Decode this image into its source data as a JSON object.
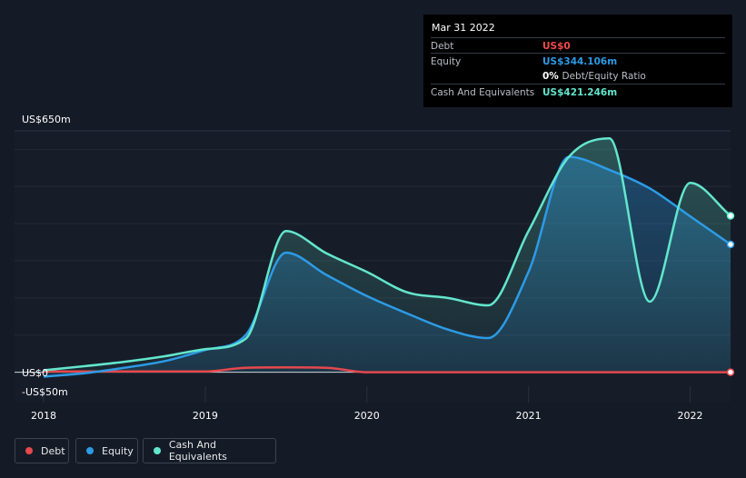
{
  "chart_data": {
    "type": "area",
    "y_unit": "US$m",
    "ylim": [
      -50,
      650
    ],
    "xlim": [
      2018,
      2022.25
    ],
    "y_labels": {
      "top": "US$650m",
      "zero": "US$0",
      "bottom": "-US$50m"
    },
    "x_ticks": [
      {
        "value": 2018,
        "label": "2018"
      },
      {
        "value": 2019,
        "label": "2019"
      },
      {
        "value": 2020,
        "label": "2020"
      },
      {
        "value": 2021,
        "label": "2021"
      },
      {
        "value": 2022,
        "label": "2022"
      }
    ],
    "series": [
      {
        "name": "Cash And Equivalents",
        "color": "#63e6cd",
        "points": [
          [
            2018.0,
            5
          ],
          [
            2018.25,
            16
          ],
          [
            2018.5,
            28
          ],
          [
            2018.75,
            43
          ],
          [
            2019.0,
            62
          ],
          [
            2019.25,
            90
          ],
          [
            2019.5,
            380
          ],
          [
            2019.75,
            320
          ],
          [
            2020.0,
            270
          ],
          [
            2020.25,
            215
          ],
          [
            2020.5,
            200
          ],
          [
            2020.75,
            180
          ],
          [
            2021.0,
            380
          ],
          [
            2021.25,
            580
          ],
          [
            2021.5,
            630
          ],
          [
            2021.75,
            190
          ],
          [
            2022.0,
            510
          ],
          [
            2022.25,
            421.246
          ]
        ]
      },
      {
        "name": "Equity",
        "color": "#2d9be6",
        "points": [
          [
            2018.0,
            -12
          ],
          [
            2018.25,
            -3
          ],
          [
            2018.5,
            12
          ],
          [
            2018.75,
            30
          ],
          [
            2019.0,
            60
          ],
          [
            2019.25,
            100
          ],
          [
            2019.5,
            322
          ],
          [
            2019.75,
            262
          ],
          [
            2020.0,
            205
          ],
          [
            2020.25,
            158
          ],
          [
            2020.5,
            115
          ],
          [
            2020.75,
            92
          ],
          [
            2021.0,
            270
          ],
          [
            2021.25,
            580
          ],
          [
            2021.5,
            545
          ],
          [
            2021.75,
            495
          ],
          [
            2022.0,
            420
          ],
          [
            2022.25,
            344.106
          ]
        ]
      },
      {
        "name": "Debt",
        "color": "#e5484d",
        "points": [
          [
            2018.0,
            2
          ],
          [
            2019.0,
            2
          ],
          [
            2019.25,
            12
          ],
          [
            2019.5,
            13
          ],
          [
            2019.75,
            12
          ],
          [
            2020.0,
            0
          ],
          [
            2020.5,
            0
          ],
          [
            2021.0,
            0
          ],
          [
            2021.5,
            0
          ],
          [
            2022.0,
            0
          ],
          [
            2022.25,
            0
          ]
        ]
      }
    ],
    "legend": [
      {
        "name": "Debt",
        "color": "#e5484d"
      },
      {
        "name": "Equity",
        "color": "#2d9be6"
      },
      {
        "name": "Cash And Equivalents",
        "color": "#63e6cd"
      }
    ]
  },
  "tooltip": {
    "date": "Mar 31 2022",
    "rows": [
      {
        "label": "Debt",
        "value": "US$0",
        "color": "#f04a4a"
      },
      {
        "label": "Equity",
        "value": "US$344.106m",
        "color": "#2d9be6"
      },
      {
        "label": "",
        "value": "0%",
        "suffix": "Debt/Equity Ratio",
        "color": "#ffffff"
      },
      {
        "label": "Cash And Equivalents",
        "value": "US$421.246m",
        "color": "#63e6cd"
      }
    ]
  }
}
